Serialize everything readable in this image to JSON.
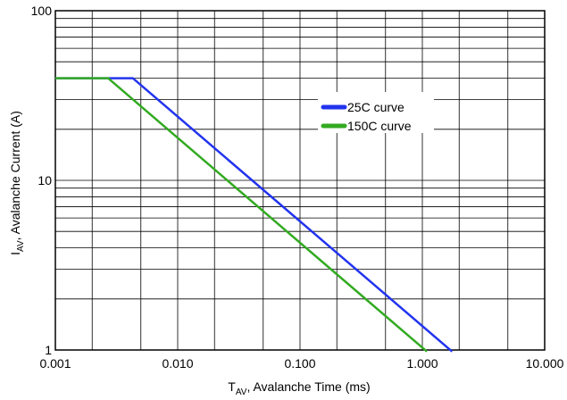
{
  "chart_data": {
    "type": "line",
    "xscale": "log",
    "yscale": "log",
    "xlim": [
      0.001,
      10
    ],
    "ylim": [
      1,
      100
    ],
    "grid": true,
    "xlabel": {
      "main": "T",
      "sub": "AV",
      "rest": ", Avalanche Time (ms)"
    },
    "ylabel": {
      "main": "I",
      "sub": "AV",
      "rest": ", Avalanche Current (A)"
    },
    "x_tick_labels": [
      {
        "value": 0.001,
        "label": "0.001"
      },
      {
        "value": 0.01,
        "label": "0.010"
      },
      {
        "value": 0.1,
        "label": "0.100"
      },
      {
        "value": 1,
        "label": "1.000"
      },
      {
        "value": 10,
        "label": "10.000"
      }
    ],
    "y_tick_labels": [
      {
        "value": 1,
        "label": "1"
      },
      {
        "value": 10,
        "label": "10"
      },
      {
        "value": 100,
        "label": "100"
      }
    ],
    "legend_position": "top-right",
    "series": [
      {
        "name": "25C curve",
        "color": "#2233ee",
        "x": [
          0.001,
          0.0043,
          1.75
        ],
        "y": [
          40,
          40,
          0.98
        ]
      },
      {
        "name": "150C curve",
        "color": "#33aa22",
        "x": [
          0.001,
          0.0027,
          1.09
        ],
        "y": [
          40,
          40,
          0.98
        ]
      }
    ]
  }
}
